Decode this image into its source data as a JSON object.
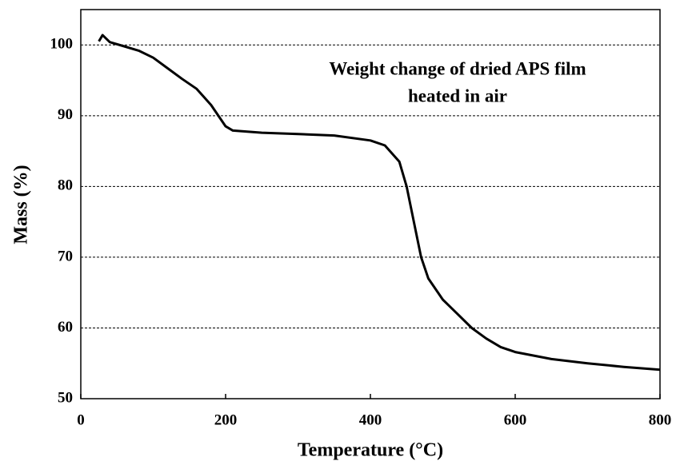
{
  "chart_data": {
    "type": "line",
    "annotation": [
      "Weight change of dried APS film",
      "heated in air"
    ],
    "x_label": "Temperature (°C)",
    "y_label": "Mass (%)",
    "series": [
      {
        "name": "APS film",
        "color": "#000000",
        "x": [
          25,
          30,
          35,
          40,
          60,
          80,
          100,
          120,
          140,
          160,
          180,
          200,
          210,
          250,
          300,
          350,
          400,
          420,
          440,
          450,
          460,
          470,
          480,
          500,
          520,
          540,
          560,
          580,
          600,
          650,
          700,
          750,
          800
        ],
        "values": [
          100.5,
          101.4,
          100.9,
          100.4,
          99.8,
          99.2,
          98.2,
          96.7,
          95.2,
          93.8,
          91.5,
          88.5,
          87.9,
          87.6,
          87.4,
          87.2,
          86.5,
          85.8,
          83.5,
          80,
          75,
          70,
          67,
          64,
          62,
          60,
          58.5,
          57.3,
          56.6,
          55.6,
          55,
          54.5,
          54.1
        ]
      }
    ],
    "xlim": [
      0,
      800
    ],
    "xticks": [
      0,
      200,
      400,
      600,
      800
    ],
    "ylim": [
      50,
      105
    ],
    "yticks": [
      50,
      60,
      70,
      80,
      90,
      100
    ],
    "grid": true
  }
}
